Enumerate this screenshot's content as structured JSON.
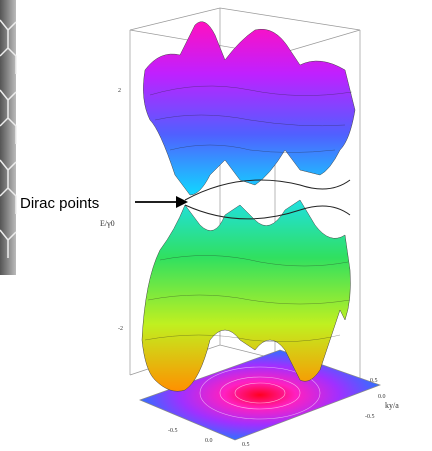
{
  "annotation": "Dirac points",
  "axes": {
    "energy": "E/γ0",
    "ky": "ky/a"
  },
  "energy_ticks": [
    "2",
    "-2"
  ],
  "floor_ticks": [
    "-0.5",
    "0.0",
    "0.5",
    "0.5",
    "0.0",
    "-0.5"
  ]
}
